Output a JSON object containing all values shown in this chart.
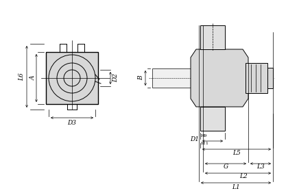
{
  "bg_color": "#ffffff",
  "line_color": "#000000",
  "gray_fill": "#d8d8d8",
  "light_gray": "#e8e8e8",
  "fig_width": 4.36,
  "fig_height": 2.79,
  "dpi": 100,
  "labels": {
    "L1": "L1",
    "L2": "L2",
    "L3": "L3",
    "G": "G",
    "L5": "L5",
    "L6": "L6",
    "A": "A",
    "D2": "D2",
    "D3": "D3",
    "B": "B",
    "D1": "D1",
    "D1_sup": "H9",
    "D1_sub": "h11"
  }
}
